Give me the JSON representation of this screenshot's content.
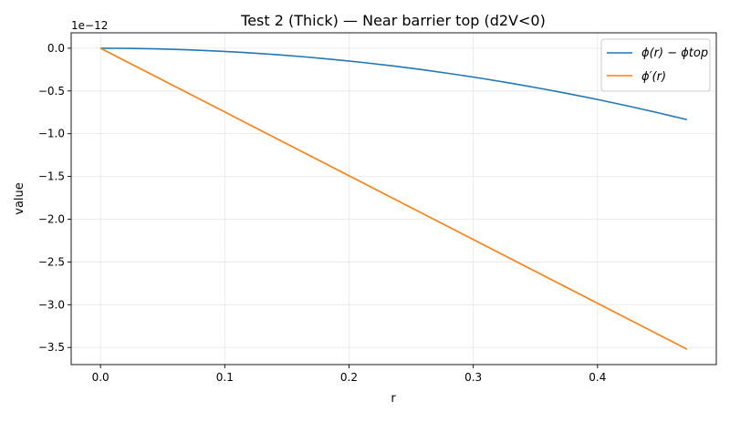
{
  "chart_data": {
    "type": "line",
    "title": "Test 2 (Thick) — Near barrier top (d2V<0)",
    "xlabel": "r",
    "ylabel": "value",
    "offset_label": "1e−12",
    "scale": 1e-12,
    "xlim": [
      -0.0236,
      0.4956
    ],
    "ylim": [
      -3.7,
      0.18
    ],
    "xticks": [
      0.0,
      0.1,
      0.2,
      0.3,
      0.4
    ],
    "xtick_labels": [
      "0.0",
      "0.1",
      "0.2",
      "0.3",
      "0.4"
    ],
    "yticks": [
      0.0,
      -0.5,
      -1.0,
      -1.5,
      -2.0,
      -2.5,
      -3.0,
      -3.5
    ],
    "ytick_labels": [
      "0.0",
      "−0.5",
      "−1.0",
      "−1.5",
      "−2.0",
      "−2.5",
      "−3.0",
      "−3.5"
    ],
    "grid": true,
    "legend_position": "top-right",
    "series": [
      {
        "name": "ϕ(r) − ϕtop",
        "color": "#1f77b4",
        "x": [
          0.0,
          0.0236,
          0.0472,
          0.0708,
          0.0944,
          0.118,
          0.1416,
          0.1652,
          0.1888,
          0.2124,
          0.236,
          0.2596,
          0.2832,
          0.3068,
          0.3304,
          0.354,
          0.3776,
          0.4012,
          0.4248,
          0.4484,
          0.472
        ],
        "y": [
          0.0,
          -0.0021,
          -0.0084,
          -0.0188,
          -0.0334,
          -0.0522,
          -0.0752,
          -0.1024,
          -0.1337,
          -0.1692,
          -0.2089,
          -0.2528,
          -0.3008,
          -0.353,
          -0.4094,
          -0.47,
          -0.5348,
          -0.6037,
          -0.6768,
          -0.7541,
          -0.8356
        ]
      },
      {
        "name": "ϕ′(r)",
        "color": "#ff7f0e",
        "x": [
          0.0,
          0.472
        ],
        "y": [
          0.0,
          -3.52
        ]
      }
    ]
  }
}
